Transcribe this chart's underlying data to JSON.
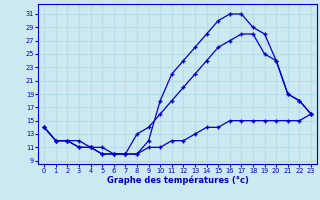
{
  "xlabel": "Graphe des températures (°c)",
  "bg_color": "#cce8f0",
  "grid_color": "#b8dce8",
  "line_color": "#0000cc",
  "xlim": [
    -0.5,
    23.5
  ],
  "ylim": [
    8.5,
    32.5
  ],
  "xticks": [
    0,
    1,
    2,
    3,
    4,
    5,
    6,
    7,
    8,
    9,
    10,
    11,
    12,
    13,
    14,
    15,
    16,
    17,
    18,
    19,
    20,
    21,
    22,
    23
  ],
  "yticks": [
    9,
    11,
    13,
    15,
    17,
    19,
    21,
    23,
    25,
    27,
    29,
    31
  ],
  "line_top_x": [
    0,
    1,
    2,
    3,
    4,
    5,
    6,
    7,
    8,
    9,
    10,
    11,
    12,
    13,
    14,
    15,
    16,
    17,
    18,
    19,
    20,
    21,
    22,
    23
  ],
  "line_top_y": [
    14,
    12,
    12,
    11,
    11,
    10,
    10,
    10,
    10,
    12,
    18,
    22,
    24,
    26,
    28,
    30,
    31,
    31,
    29,
    28,
    24,
    19,
    18,
    16
  ],
  "line_mid_x": [
    0,
    1,
    2,
    3,
    4,
    5,
    6,
    7,
    8,
    9,
    10,
    11,
    12,
    13,
    14,
    15,
    16,
    17,
    18,
    19,
    20,
    21,
    22,
    23
  ],
  "line_mid_y": [
    14,
    12,
    12,
    11,
    11,
    10,
    10,
    10,
    13,
    14,
    16,
    18,
    20,
    22,
    24,
    26,
    27,
    28,
    28,
    25,
    24,
    19,
    18,
    16
  ],
  "line_bot_x": [
    0,
    1,
    2,
    3,
    4,
    5,
    6,
    7,
    8,
    9,
    10,
    11,
    12,
    13,
    14,
    15,
    16,
    17,
    18,
    19,
    20,
    21,
    22,
    23
  ],
  "line_bot_y": [
    14,
    12,
    12,
    12,
    11,
    11,
    10,
    10,
    10,
    11,
    11,
    12,
    12,
    13,
    14,
    14,
    15,
    15,
    15,
    15,
    15,
    15,
    15,
    16
  ]
}
